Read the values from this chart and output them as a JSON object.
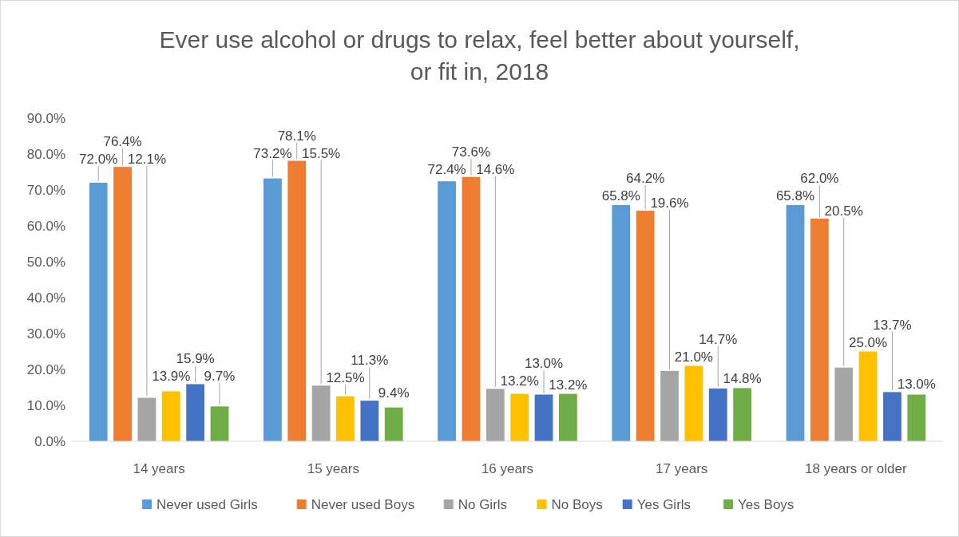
{
  "chart_data": {
    "type": "bar",
    "title": "Ever use alcohol or drugs to relax, feel better about yourself,\nor fit in, 2018",
    "categories": [
      "14 years",
      "15 years",
      "16 years",
      "17 years",
      "18 years or older"
    ],
    "series": [
      {
        "name": "Never used Girls",
        "color": "#5b9bd5",
        "values": [
          72.0,
          73.2,
          72.4,
          65.8,
          65.8
        ],
        "value_labels": [
          "72.0%",
          "73.2%",
          "72.4%",
          "65.8%",
          "65.8%"
        ]
      },
      {
        "name": "Never used Boys",
        "color": "#ed7d31",
        "values": [
          76.4,
          78.1,
          73.6,
          64.2,
          62.0
        ],
        "value_labels": [
          "76.4%",
          "78.1%",
          "73.6%",
          "64.2%",
          "62.0%"
        ]
      },
      {
        "name": "No Girls",
        "color": "#a5a5a5",
        "values": [
          12.1,
          15.5,
          14.6,
          19.6,
          20.5
        ],
        "value_labels": [
          "12.1%",
          "15.5%",
          "14.6%",
          "19.6%",
          "20.5%"
        ]
      },
      {
        "name": "No Boys",
        "color": "#ffc000",
        "values": [
          13.9,
          12.5,
          13.2,
          21.0,
          25.0
        ],
        "value_labels": [
          "13.9%",
          "12.5%",
          "13.2%",
          "21.0%",
          "25.0%"
        ]
      },
      {
        "name": "Yes Girls",
        "color": "#4472c4",
        "values": [
          15.9,
          11.3,
          13.0,
          14.7,
          13.7
        ],
        "value_labels": [
          "15.9%",
          "11.3%",
          "13.0%",
          "14.7%",
          "13.7%"
        ]
      },
      {
        "name": "Yes Boys",
        "color": "#70ad47",
        "values": [
          9.7,
          9.4,
          13.2,
          14.8,
          13.0
        ],
        "value_labels": [
          "9.7%",
          "9.4%",
          "13.2%",
          "14.8%",
          "13.0%"
        ]
      }
    ],
    "ylim": [
      0,
      90
    ],
    "yticks": [
      {
        "value": 0,
        "label": "0.0%"
      },
      {
        "value": 10,
        "label": "10.0%"
      },
      {
        "value": 20,
        "label": "20.0%"
      },
      {
        "value": 30,
        "label": "30.0%"
      },
      {
        "value": 40,
        "label": "40.0%"
      },
      {
        "value": 50,
        "label": "50.0%"
      },
      {
        "value": 60,
        "label": "60.0%"
      },
      {
        "value": 70,
        "label": "70.0%"
      },
      {
        "value": 80,
        "label": "80.0%"
      },
      {
        "value": 90,
        "label": "90.0%"
      }
    ],
    "grid": false,
    "legend": "bottom"
  }
}
